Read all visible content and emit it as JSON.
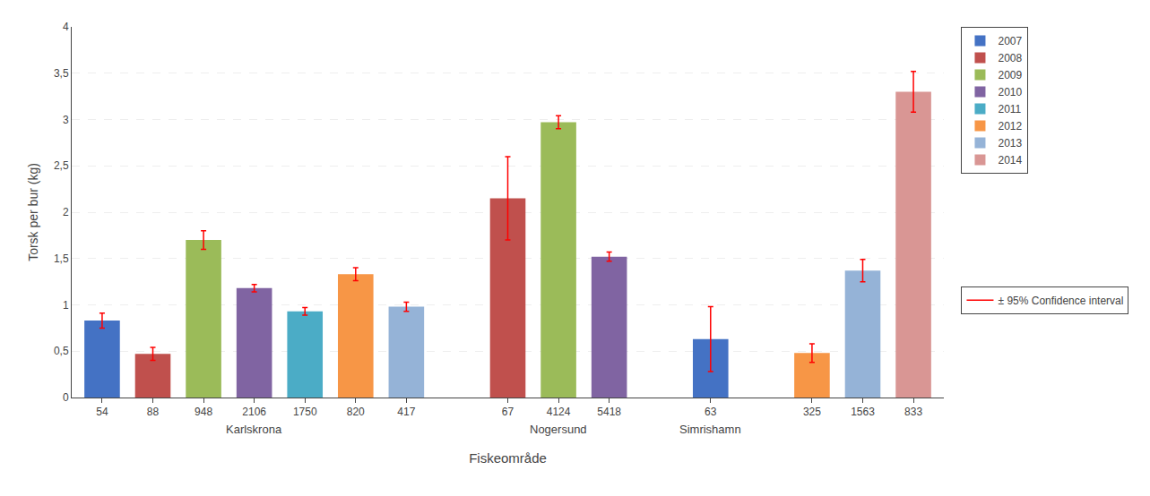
{
  "chart_data": {
    "type": "bar",
    "xlabel": "Fiskeområde",
    "ylabel": "Torsk per bur (kg)",
    "categories": [
      "54",
      "88",
      "948",
      "2106",
      "1750",
      "820",
      "417",
      null,
      "67",
      "4124",
      "5418",
      null,
      "63",
      null,
      "325",
      "1563",
      "833"
    ],
    "series": [
      {
        "name": "2007",
        "color": "#4472c4",
        "values": [
          0.83,
          null,
          null,
          null,
          null,
          null,
          null,
          null,
          null,
          null,
          null,
          null,
          0.63,
          null,
          null,
          null,
          null
        ],
        "errors": [
          0.08,
          null,
          null,
          null,
          null,
          null,
          null,
          null,
          null,
          null,
          null,
          null,
          0.35,
          null,
          null,
          null,
          null
        ]
      },
      {
        "name": "2008",
        "color": "#c0504d",
        "values": [
          null,
          0.47,
          null,
          null,
          null,
          null,
          null,
          null,
          2.15,
          null,
          null,
          null,
          null,
          null,
          null,
          null,
          null
        ],
        "errors": [
          null,
          0.07,
          null,
          null,
          null,
          null,
          null,
          null,
          0.45,
          null,
          null,
          null,
          null,
          null,
          null,
          null,
          null
        ]
      },
      {
        "name": "2009",
        "color": "#9bbb59",
        "values": [
          null,
          null,
          1.7,
          null,
          null,
          null,
          null,
          null,
          null,
          2.97,
          null,
          null,
          null,
          null,
          null,
          null,
          null
        ],
        "errors": [
          null,
          null,
          0.1,
          null,
          null,
          null,
          null,
          null,
          null,
          0.07,
          null,
          null,
          null,
          null,
          null,
          null,
          null
        ]
      },
      {
        "name": "2010",
        "color": "#8064a2",
        "values": [
          null,
          null,
          null,
          1.18,
          null,
          null,
          null,
          null,
          null,
          null,
          1.52,
          null,
          null,
          null,
          null,
          null,
          null
        ],
        "errors": [
          null,
          null,
          null,
          0.04,
          null,
          null,
          null,
          null,
          null,
          null,
          0.05,
          null,
          null,
          null,
          null,
          null,
          null
        ]
      },
      {
        "name": "2011",
        "color": "#4bacc6",
        "values": [
          null,
          null,
          null,
          null,
          0.93,
          null,
          null,
          null,
          null,
          null,
          null,
          null,
          null,
          null,
          null,
          null,
          null
        ],
        "errors": [
          null,
          null,
          null,
          null,
          0.04,
          null,
          null,
          null,
          null,
          null,
          null,
          null,
          null,
          null,
          null,
          null,
          null
        ]
      },
      {
        "name": "2012",
        "color": "#f79646",
        "values": [
          null,
          null,
          null,
          null,
          null,
          1.33,
          null,
          null,
          null,
          null,
          null,
          null,
          null,
          null,
          0.48,
          null,
          null
        ],
        "errors": [
          null,
          null,
          null,
          null,
          null,
          0.07,
          null,
          null,
          null,
          null,
          null,
          null,
          null,
          null,
          0.1,
          null,
          null
        ]
      },
      {
        "name": "2013",
        "color": "#95b3d7",
        "values": [
          null,
          null,
          null,
          null,
          null,
          null,
          0.98,
          null,
          null,
          null,
          null,
          null,
          null,
          null,
          null,
          1.37,
          null
        ],
        "errors": [
          null,
          null,
          null,
          null,
          null,
          null,
          0.05,
          null,
          null,
          null,
          null,
          null,
          null,
          null,
          null,
          0.12,
          null
        ]
      },
      {
        "name": "2014",
        "color": "#d99694",
        "values": [
          null,
          null,
          null,
          null,
          null,
          null,
          null,
          null,
          null,
          null,
          null,
          null,
          null,
          null,
          null,
          null,
          3.3
        ],
        "errors": [
          null,
          null,
          null,
          null,
          null,
          null,
          null,
          null,
          null,
          null,
          null,
          null,
          null,
          null,
          null,
          null,
          0.22
        ]
      }
    ],
    "error_name": "± 95% Confidence interval",
    "error_color": "red",
    "annotations": [
      "Karlskrona",
      "Nogersund",
      "Simrishamn"
    ],
    "ylim": [
      0,
      4.0
    ],
    "yticks": [
      0,
      {
        "value": 0.5,
        "label": "0,5"
      },
      1,
      {
        "value": 1.5,
        "label": "1,5"
      },
      2,
      {
        "value": 2.5,
        "label": "2,5"
      },
      3,
      {
        "value": 3.5,
        "label": "3,5"
      },
      4
    ],
    "grid": true,
    "legend": "right"
  }
}
